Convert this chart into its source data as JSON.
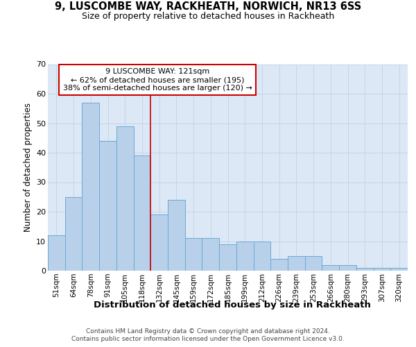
{
  "title_line1": "9, LUSCOMBE WAY, RACKHEATH, NORWICH, NR13 6SS",
  "title_line2": "Size of property relative to detached houses in Rackheath",
  "xlabel": "Distribution of detached houses by size in Rackheath",
  "ylabel": "Number of detached properties",
  "categories": [
    "51sqm",
    "64sqm",
    "78sqm",
    "91sqm",
    "105sqm",
    "118sqm",
    "132sqm",
    "145sqm",
    "159sqm",
    "172sqm",
    "185sqm",
    "199sqm",
    "212sqm",
    "226sqm",
    "239sqm",
    "253sqm",
    "266sqm",
    "280sqm",
    "293sqm",
    "307sqm",
    "320sqm"
  ],
  "values": [
    12,
    25,
    57,
    44,
    49,
    39,
    19,
    24,
    11,
    11,
    9,
    10,
    10,
    4,
    5,
    5,
    2,
    2,
    1,
    1,
    1
  ],
  "bar_color": "#b8d0ea",
  "bar_edge_color": "#6aaad4",
  "vline_x": 5.5,
  "vline_color": "#cc0000",
  "annotation_text": "9 LUSCOMBE WAY: 121sqm\n← 62% of detached houses are smaller (195)\n38% of semi-detached houses are larger (120) →",
  "annotation_box_color": "#ffffff",
  "annotation_box_edge": "#cc0000",
  "grid_color": "#c8d4e4",
  "background_color": "#dce8f5",
  "footer_line1": "Contains HM Land Registry data © Crown copyright and database right 2024.",
  "footer_line2": "Contains public sector information licensed under the Open Government Licence v3.0.",
  "ylim": [
    0,
    70
  ],
  "yticks": [
    0,
    10,
    20,
    30,
    40,
    50,
    60,
    70
  ]
}
